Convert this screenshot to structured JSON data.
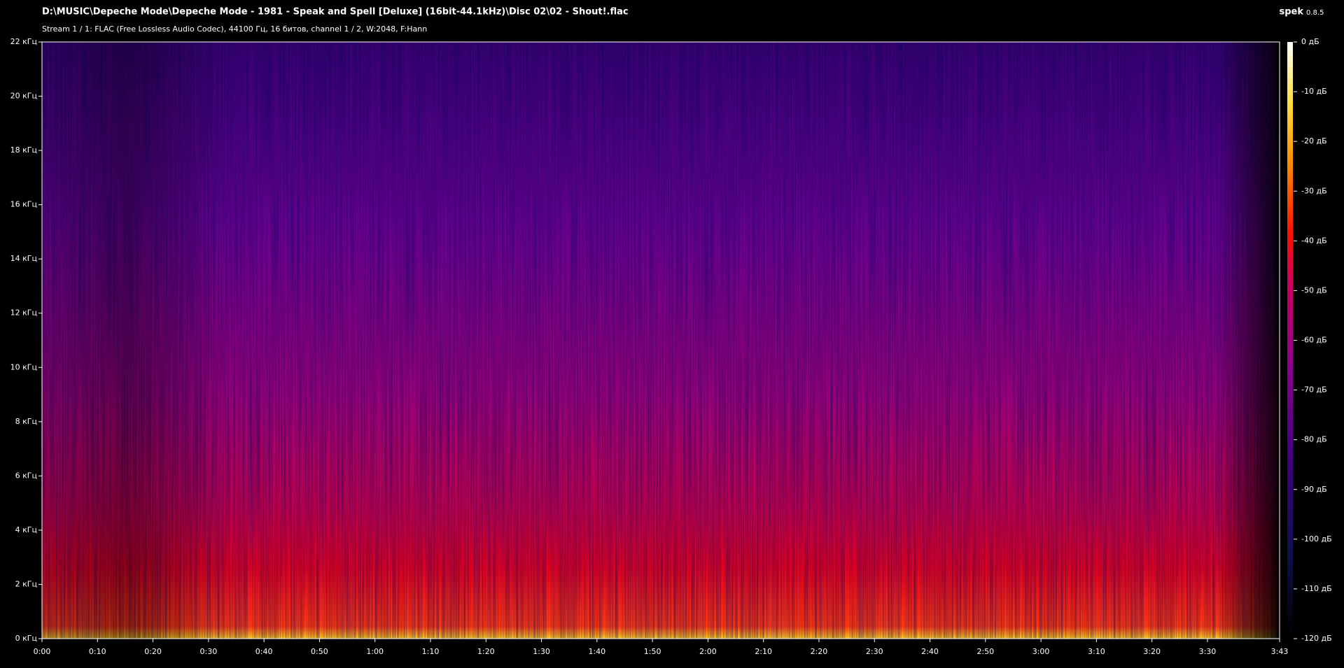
{
  "chart_data": {
    "type": "spectrogram",
    "title": "D:\\MUSIC\\Depeche Mode\\Depeche Mode - 1981 - Speak and Spell [Deluxe] (16bit-44.1kHz)\\Disc 02\\02 - Shout!.flac",
    "subtitle": "Stream 1 / 1: FLAC (Free Lossless Audio Codec), 44100 Гц, 16 битов, channel 1 / 2, W:2048, F:Hann",
    "app_name": "spek",
    "app_version": "0.8.5",
    "xlim": [
      0,
      223
    ],
    "xticks": [
      {
        "value": 0,
        "label": "0:00"
      },
      {
        "value": 10,
        "label": "0:10"
      },
      {
        "value": 20,
        "label": "0:20"
      },
      {
        "value": 30,
        "label": "0:30"
      },
      {
        "value": 40,
        "label": "0:40"
      },
      {
        "value": 50,
        "label": "0:50"
      },
      {
        "value": 60,
        "label": "1:00"
      },
      {
        "value": 70,
        "label": "1:10"
      },
      {
        "value": 80,
        "label": "1:20"
      },
      {
        "value": 90,
        "label": "1:30"
      },
      {
        "value": 100,
        "label": "1:40"
      },
      {
        "value": 110,
        "label": "1:50"
      },
      {
        "value": 120,
        "label": "2:00"
      },
      {
        "value": 130,
        "label": "2:10"
      },
      {
        "value": 140,
        "label": "2:20"
      },
      {
        "value": 150,
        "label": "2:30"
      },
      {
        "value": 160,
        "label": "2:40"
      },
      {
        "value": 170,
        "label": "2:50"
      },
      {
        "value": 180,
        "label": "3:00"
      },
      {
        "value": 190,
        "label": "3:10"
      },
      {
        "value": 200,
        "label": "3:20"
      },
      {
        "value": 210,
        "label": "3:30"
      },
      {
        "value": 223,
        "label": "3:43"
      }
    ],
    "ylim": [
      0,
      22
    ],
    "yticks": [
      {
        "value": 0,
        "label": "0 кГц"
      },
      {
        "value": 2,
        "label": "2 кГц"
      },
      {
        "value": 4,
        "label": "4 кГц"
      },
      {
        "value": 6,
        "label": "6 кГц"
      },
      {
        "value": 8,
        "label": "8 кГц"
      },
      {
        "value": 10,
        "label": "10 кГц"
      },
      {
        "value": 12,
        "label": "12 кГц"
      },
      {
        "value": 14,
        "label": "14 кГц"
      },
      {
        "value": 16,
        "label": "16 кГц"
      },
      {
        "value": 18,
        "label": "18 кГц"
      },
      {
        "value": 20,
        "label": "20 кГц"
      },
      {
        "value": 22,
        "label": "22 кГц"
      }
    ],
    "zlim": [
      -120,
      0
    ],
    "zticks": [
      {
        "value": 0,
        "label": "0 дБ"
      },
      {
        "value": -10,
        "label": "-10 дБ"
      },
      {
        "value": -20,
        "label": "-20 дБ"
      },
      {
        "value": -30,
        "label": "-30 дБ"
      },
      {
        "value": -40,
        "label": "-40 дБ"
      },
      {
        "value": -50,
        "label": "-50 дБ"
      },
      {
        "value": -60,
        "label": "-60 дБ"
      },
      {
        "value": -70,
        "label": "-70 дБ"
      },
      {
        "value": -80,
        "label": "-80 дБ"
      },
      {
        "value": -90,
        "label": "-90 дБ"
      },
      {
        "value": -100,
        "label": "-100 дБ"
      },
      {
        "value": -110,
        "label": "-110 дБ"
      },
      {
        "value": -120,
        "label": "-120 дБ"
      }
    ]
  }
}
